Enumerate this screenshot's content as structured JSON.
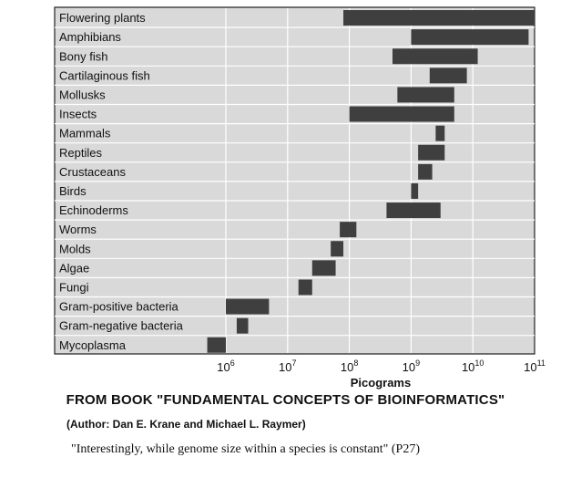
{
  "chart_data": {
    "type": "bar",
    "orientation": "horizontal",
    "xscale": "log",
    "xlabel": "Picograms",
    "xlim": [
      100000,
      100000000000
    ],
    "xticks": [
      {
        "base": "10",
        "exp": "6"
      },
      {
        "base": "10",
        "exp": "7"
      },
      {
        "base": "10",
        "exp": "8"
      },
      {
        "base": "10",
        "exp": "9"
      },
      {
        "base": "10",
        "exp": "10"
      },
      {
        "base": "10",
        "exp": "11"
      }
    ],
    "grid": true,
    "colors": {
      "bar": "#3f3f3f",
      "panel": "#d9d9d9",
      "grid": "#ffffff"
    },
    "categories": [
      "Flowering plants",
      "Amphibians",
      "Bony fish",
      "Cartilaginous fish",
      "Mollusks",
      "Insects",
      "Mammals",
      "Reptiles",
      "Crustaceans",
      "Birds",
      "Echinoderms",
      "Worms",
      "Molds",
      "Algae",
      "Fungi",
      "Gram-positive bacteria",
      "Gram-negative bacteria",
      "Mycoplasma"
    ],
    "ranges": [
      [
        80000000,
        100000000000
      ],
      [
        1000000000,
        80000000000
      ],
      [
        500000000,
        12000000000
      ],
      [
        2000000000,
        8000000000
      ],
      [
        600000000,
        5000000000
      ],
      [
        100000000,
        5000000000
      ],
      [
        2500000000,
        3500000000
      ],
      [
        1300000000,
        3500000000
      ],
      [
        1300000000,
        2200000000
      ],
      [
        1000000000,
        1300000000
      ],
      [
        400000000,
        3000000000
      ],
      [
        70000000,
        130000000
      ],
      [
        50000000,
        80000000
      ],
      [
        25000000,
        60000000
      ],
      [
        15000000,
        25000000
      ],
      [
        1000000,
        5000000
      ],
      [
        1500000,
        2300000
      ],
      [
        500000,
        1000000
      ]
    ]
  },
  "captions": {
    "book": "FROM BOOK \"FUNDAMENTAL CONCEPTS OF BIOINFORMATICS\"",
    "author": "(Author: Dan E. Krane and Michael L. Raymer)",
    "quote": "\"Interestingly, while genome size within a species is constant\" (P27)"
  }
}
